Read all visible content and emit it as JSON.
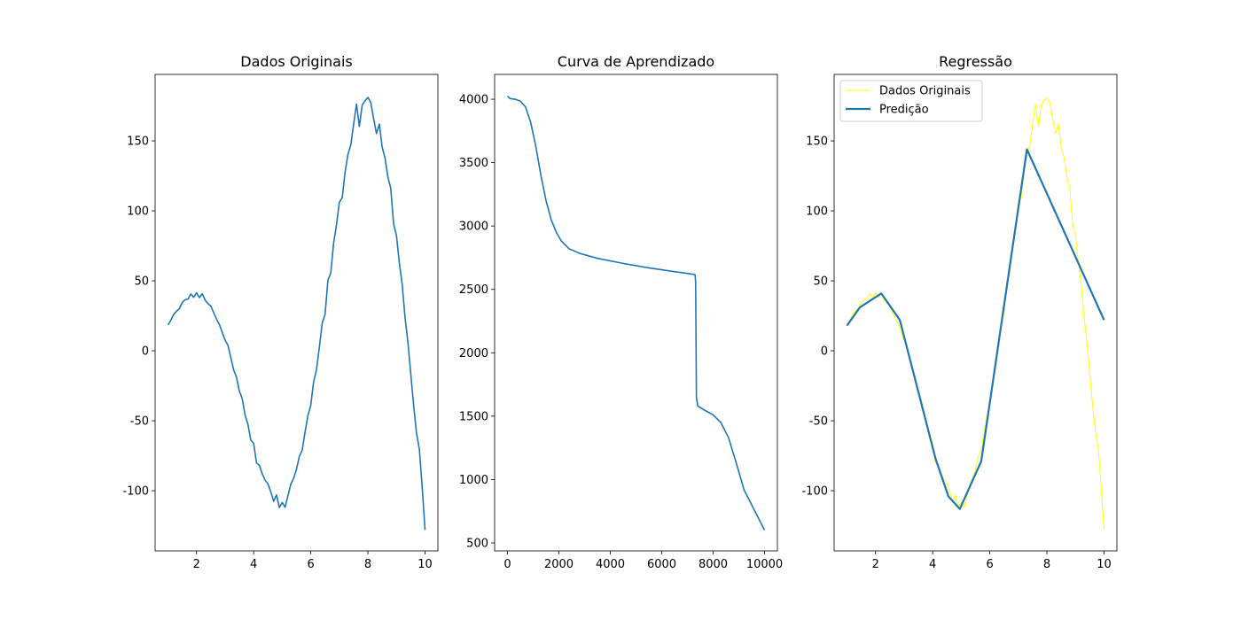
{
  "chart_data": [
    {
      "type": "line",
      "title": "Dados Originais",
      "x": [
        1.0,
        1.1,
        1.2,
        1.3,
        1.4,
        1.5,
        1.6,
        1.7,
        1.8,
        1.9,
        2.0,
        2.1,
        2.2,
        2.3,
        2.4,
        2.5,
        2.6,
        2.7,
        2.8,
        2.9,
        3.0,
        3.1,
        3.2,
        3.3,
        3.4,
        3.5,
        3.6,
        3.7,
        3.8,
        3.9,
        4.0,
        4.1,
        4.2,
        4.3,
        4.4,
        4.5,
        4.6,
        4.7,
        4.8,
        4.9,
        5.0,
        5.1,
        5.2,
        5.3,
        5.4,
        5.5,
        5.6,
        5.7,
        5.8,
        5.9,
        6.0,
        6.1,
        6.2,
        6.3,
        6.4,
        6.5,
        6.6,
        6.7,
        6.8,
        6.9,
        7.0,
        7.1,
        7.2,
        7.3,
        7.4,
        7.5,
        7.6,
        7.7,
        7.8,
        7.9,
        8.0,
        8.1,
        8.2,
        8.3,
        8.4,
        8.5,
        8.6,
        8.7,
        8.8,
        8.9,
        9.0,
        9.1,
        9.2,
        9.3,
        9.4,
        9.5,
        9.6,
        9.7,
        9.8,
        9.9,
        10.0
      ],
      "values": [
        18.5,
        21.8,
        26.0,
        28.3,
        30.1,
        34.6,
        36.5,
        37.0,
        40.6,
        38.2,
        41.4,
        38.0,
        40.8,
        36.2,
        33.7,
        31.9,
        27.2,
        22.6,
        18.8,
        13.1,
        7.6,
        3.9,
        -4.8,
        -13.6,
        -19.0,
        -28.9,
        -34.2,
        -46.0,
        -52.5,
        -63.8,
        -66.1,
        -80.2,
        -81.9,
        -87.9,
        -92.4,
        -95.1,
        -100.8,
        -107.5,
        -103.0,
        -112.0,
        -108.4,
        -111.8,
        -103.5,
        -95.3,
        -91.0,
        -84.6,
        -75.4,
        -71.0,
        -57.9,
        -46.2,
        -38.8,
        -22.0,
        -13.5,
        2.6,
        19.8,
        26.0,
        50.4,
        55.7,
        77.1,
        90.0,
        106.2,
        109.4,
        127.7,
        140.3,
        147.0,
        162.0,
        176.3,
        160.3,
        175.6,
        178.7,
        181.0,
        177.5,
        165.8,
        155.2,
        162.0,
        145.4,
        137.6,
        124.0,
        116.1,
        90.5,
        82.3,
        62.8,
        47.3,
        23.8,
        6.0,
        -16.2,
        -38.9,
        -58.6,
        -70.2,
        -97.4,
        -128.0
      ],
      "color": "#1f77b4",
      "xlim": [
        0.55,
        10.45
      ],
      "ylim": [
        -143,
        197.5
      ],
      "xticks": [
        2,
        4,
        6,
        8,
        10
      ],
      "yticks": [
        -100,
        -50,
        0,
        50,
        100,
        150
      ]
    },
    {
      "type": "line",
      "title": "Curva de Aprendizado",
      "x": [
        0,
        100,
        300,
        500,
        700,
        900,
        1100,
        1300,
        1500,
        1700,
        1900,
        2100,
        2400,
        2800,
        3500,
        4500,
        5500,
        6500,
        7200,
        7300,
        7320,
        7350,
        7400,
        7600,
        8000,
        8300,
        8600,
        8900,
        9200,
        9600,
        10000
      ],
      "values": [
        4025,
        4005,
        4000,
        3985,
        3940,
        3820,
        3630,
        3400,
        3200,
        3050,
        2950,
        2880,
        2820,
        2785,
        2745,
        2705,
        2670,
        2640,
        2620,
        2615,
        2550,
        1650,
        1580,
        1555,
        1510,
        1450,
        1330,
        1130,
        920,
        760,
        600
      ],
      "color": "#1f77b4",
      "xlim": [
        -500,
        10500
      ],
      "ylim": [
        437,
        4196
      ],
      "xticks": [
        0,
        2000,
        4000,
        6000,
        8000,
        10000
      ],
      "yticks": [
        500,
        1000,
        1500,
        2000,
        2500,
        3000,
        3500,
        4000
      ]
    },
    {
      "type": "line",
      "title": "Regressão",
      "legend": "upper left",
      "series": [
        {
          "name": "Dados Originais",
          "color": "#ffff00",
          "x": [
            1.0,
            1.1,
            1.2,
            1.3,
            1.4,
            1.5,
            1.6,
            1.7,
            1.8,
            1.9,
            2.0,
            2.1,
            2.2,
            2.3,
            2.4,
            2.5,
            2.6,
            2.7,
            2.8,
            2.9,
            3.0,
            3.1,
            3.2,
            3.3,
            3.4,
            3.5,
            3.6,
            3.7,
            3.8,
            3.9,
            4.0,
            4.1,
            4.2,
            4.3,
            4.4,
            4.5,
            4.6,
            4.7,
            4.8,
            4.9,
            5.0,
            5.1,
            5.2,
            5.3,
            5.4,
            5.5,
            5.6,
            5.7,
            5.8,
            5.9,
            6.0,
            6.1,
            6.2,
            6.3,
            6.4,
            6.5,
            6.6,
            6.7,
            6.8,
            6.9,
            7.0,
            7.1,
            7.2,
            7.3,
            7.4,
            7.5,
            7.6,
            7.7,
            7.8,
            7.9,
            8.0,
            8.1,
            8.2,
            8.3,
            8.4,
            8.5,
            8.6,
            8.7,
            8.8,
            8.9,
            9.0,
            9.1,
            9.2,
            9.3,
            9.4,
            9.5,
            9.6,
            9.7,
            9.8,
            9.9,
            10.0
          ],
          "values": [
            18.5,
            21.8,
            26.0,
            28.3,
            30.1,
            34.6,
            36.5,
            37.0,
            40.6,
            38.2,
            41.4,
            38.0,
            40.8,
            36.2,
            33.7,
            31.9,
            27.2,
            22.6,
            18.8,
            13.1,
            7.6,
            3.9,
            -4.8,
            -13.6,
            -19.0,
            -28.9,
            -34.2,
            -46.0,
            -52.5,
            -63.8,
            -66.1,
            -80.2,
            -81.9,
            -87.9,
            -92.4,
            -95.1,
            -100.8,
            -107.5,
            -103.0,
            -112.0,
            -108.4,
            -111.8,
            -103.5,
            -95.3,
            -91.0,
            -84.6,
            -75.4,
            -71.0,
            -57.9,
            -46.2,
            -38.8,
            -22.0,
            -13.5,
            2.6,
            19.8,
            26.0,
            50.4,
            55.7,
            77.1,
            90.0,
            106.2,
            109.4,
            127.7,
            140.3,
            147.0,
            162.0,
            176.3,
            160.3,
            175.6,
            178.7,
            181.0,
            177.5,
            165.8,
            155.2,
            162.0,
            145.4,
            137.6,
            124.0,
            116.1,
            90.5,
            82.3,
            62.8,
            47.3,
            23.8,
            6.0,
            -16.2,
            -38.9,
            -58.6,
            -70.2,
            -97.4,
            -128.0
          ]
        },
        {
          "name": "Predição",
          "color": "#1f77b4",
          "x": [
            1.0,
            1.45,
            2.2,
            2.85,
            4.1,
            4.55,
            4.95,
            5.7,
            7.3,
            10.0
          ],
          "values": [
            18,
            31,
            41,
            22,
            -77,
            -104,
            -113,
            -79,
            144,
            22
          ]
        }
      ],
      "xlim": [
        0.55,
        10.45
      ],
      "ylim": [
        -143,
        197.5
      ],
      "xticks": [
        2,
        4,
        6,
        8,
        10
      ],
      "yticks": [
        -100,
        -50,
        0,
        50,
        100,
        150
      ]
    }
  ]
}
